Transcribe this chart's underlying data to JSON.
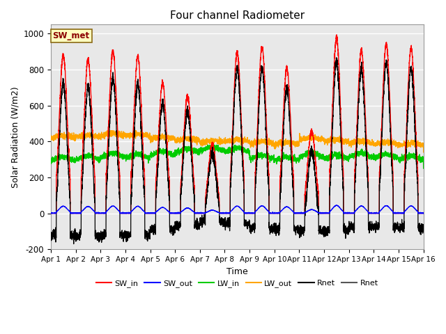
{
  "title": "Four channel Radiometer",
  "xlabel": "Time",
  "ylabel": "Solar Radiation (W/m2)",
  "ylim": [
    -200,
    1050
  ],
  "xlim": [
    0,
    15
  ],
  "xtick_labels": [
    "Apr 1",
    "Apr 2",
    "Apr 3",
    "Apr 4",
    "Apr 5",
    "Apr 6",
    "Apr 7",
    "Apr 8",
    "Apr 9",
    "Apr 10",
    "Apr 11",
    "Apr 12",
    "Apr 13",
    "Apr 14",
    "Apr 15",
    "Apr 16"
  ],
  "ytick_values": [
    -200,
    0,
    200,
    400,
    600,
    800,
    1000
  ],
  "annotation_text": "SW_met",
  "annotation_color": "#8B0000",
  "annotation_bg": "#FFFFC0",
  "annotation_border": "#8B6914",
  "colors": {
    "SW_in": "#FF0000",
    "SW_out": "#0000FF",
    "LW_in": "#00CC00",
    "LW_out": "#FFA500",
    "Rnet_black": "#000000",
    "Rnet_dark": "#555555"
  },
  "legend_labels": [
    "SW_in",
    "SW_out",
    "LW_in",
    "LW_out",
    "Rnet",
    "Rnet"
  ],
  "bg_color": "#E8E8E8",
  "fig_bg": "#FFFFFF",
  "days": 15,
  "SW_in_peaks": [
    880,
    855,
    905,
    870,
    725,
    655,
    385,
    895,
    925,
    805,
    460,
    975,
    905,
    945,
    920
  ],
  "lw_in_base": 300,
  "lw_out_base": 390
}
